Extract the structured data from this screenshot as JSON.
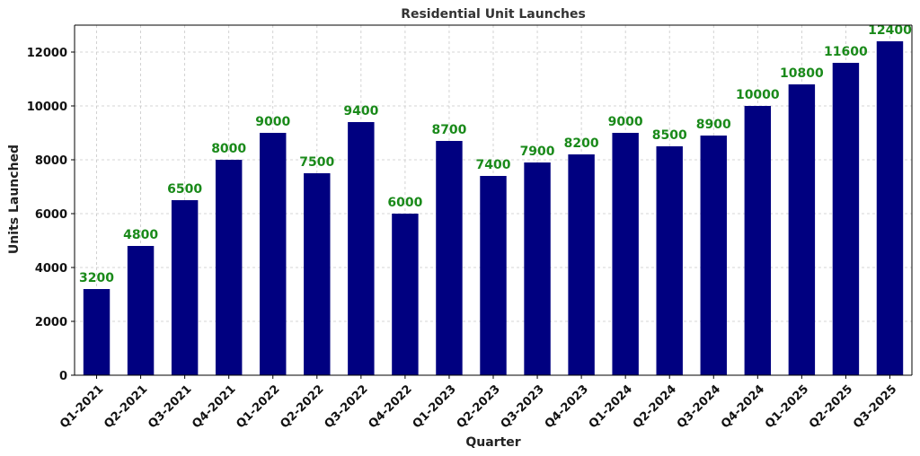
{
  "chart_data": {
    "type": "bar",
    "title": "Residential Unit Launches",
    "xlabel": "Quarter",
    "ylabel": "Units Launched",
    "categories": [
      "Q1-2021",
      "Q2-2021",
      "Q3-2021",
      "Q4-2021",
      "Q1-2022",
      "Q2-2022",
      "Q3-2022",
      "Q4-2022",
      "Q1-2023",
      "Q2-2023",
      "Q3-2023",
      "Q4-2023",
      "Q1-2024",
      "Q2-2024",
      "Q3-2024",
      "Q4-2024",
      "Q1-2025",
      "Q2-2025",
      "Q3-2025"
    ],
    "values": [
      3200,
      4800,
      6500,
      8000,
      9000,
      7500,
      9400,
      6000,
      8700,
      7400,
      7900,
      8200,
      9000,
      8500,
      8900,
      10000,
      10800,
      11600,
      12400
    ],
    "ylim": [
      0,
      13000
    ],
    "yticks": [
      0,
      2000,
      4000,
      6000,
      8000,
      10000,
      12000
    ],
    "grid": true,
    "bar_color": "#000080",
    "label_color": "#1a8a1a"
  }
}
